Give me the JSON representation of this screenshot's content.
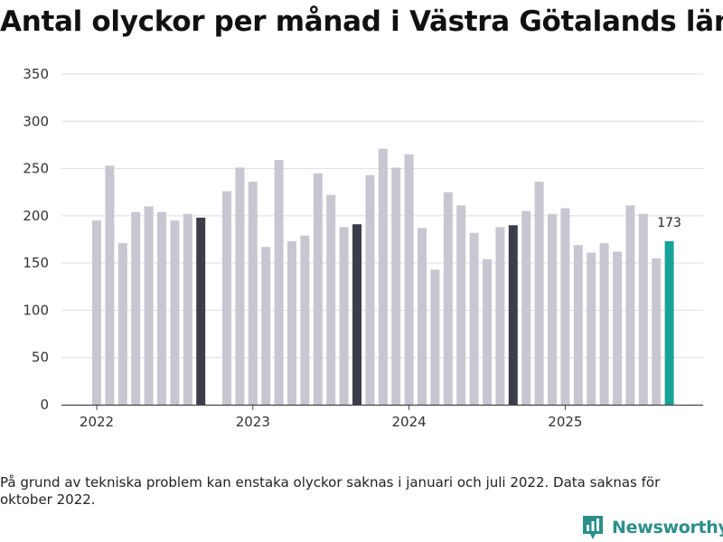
{
  "chart_data": {
    "type": "bar",
    "title": "Antal olyckor per månad i Västra Götalands län",
    "xlabel": "",
    "ylabel": "",
    "ylim": [
      0,
      350
    ],
    "yticks": [
      0,
      50,
      100,
      150,
      200,
      250,
      300,
      350
    ],
    "xtick_labels": [
      {
        "label": "2022",
        "index": 0
      },
      {
        "label": "2023",
        "index": 12
      },
      {
        "label": "2024",
        "index": 24
      },
      {
        "label": "2025",
        "index": 36
      }
    ],
    "categories": [
      "2022-01",
      "2022-02",
      "2022-03",
      "2022-04",
      "2022-05",
      "2022-06",
      "2022-07",
      "2022-08",
      "2022-09",
      "2022-10",
      "2022-11",
      "2022-12",
      "2023-01",
      "2023-02",
      "2023-03",
      "2023-04",
      "2023-05",
      "2023-06",
      "2023-07",
      "2023-08",
      "2023-09",
      "2023-10",
      "2023-11",
      "2023-12",
      "2024-01",
      "2024-02",
      "2024-03",
      "2024-04",
      "2024-05",
      "2024-06",
      "2024-07",
      "2024-08",
      "2024-09",
      "2024-10",
      "2024-11",
      "2024-12",
      "2025-01",
      "2025-02",
      "2025-03",
      "2025-04",
      "2025-05",
      "2025-06",
      "2025-07",
      "2025-08",
      "2025-09"
    ],
    "values": [
      195,
      253,
      171,
      204,
      210,
      204,
      195,
      202,
      198,
      null,
      226,
      251,
      236,
      167,
      259,
      173,
      179,
      245,
      222,
      188,
      191,
      243,
      271,
      251,
      265,
      187,
      143,
      225,
      211,
      182,
      154,
      188,
      190,
      205,
      236,
      202,
      208,
      169,
      161,
      171,
      162,
      211,
      202,
      155,
      173
    ],
    "highlight": {
      "2022-09": "dark",
      "2023-09": "dark",
      "2024-09": "dark",
      "2025-09": "accent"
    },
    "annotations": [
      {
        "category": "2025-09",
        "text": "173"
      }
    ],
    "colors": {
      "default": "#c8c7d1",
      "dark": "#3d3c4a",
      "accent": "#17a398",
      "grid": "#dedede",
      "axis": "#444444"
    }
  },
  "footnote": "På grund av tekniska problem kan enstaka olyckor saknas i januari och juli 2022. Data saknas för oktober 2022.",
  "brand": {
    "name": "Newsworthy",
    "icon": "newsworthy-chart-icon",
    "color": "#2a8f8a"
  }
}
